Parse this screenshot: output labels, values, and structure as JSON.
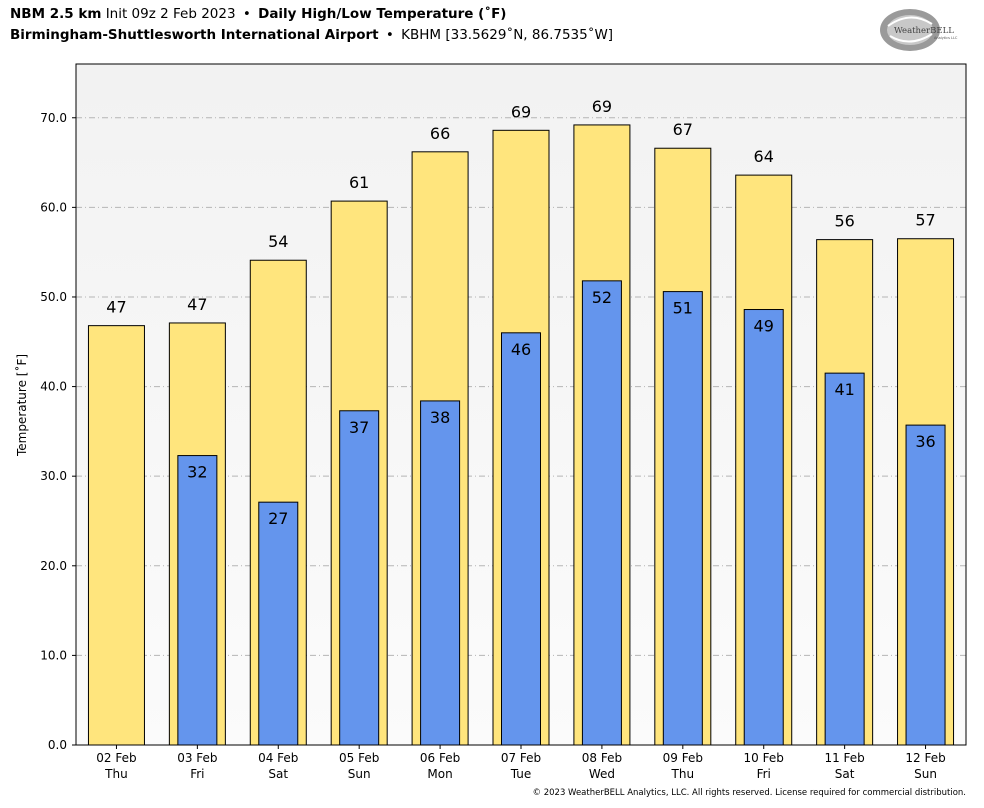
{
  "header": {
    "model": "NBM 2.5 km",
    "init": "Init 09z 2 Feb 2023",
    "bullet": "•",
    "product": "Daily High/Low Temperature (˚F)",
    "station_name": "Birmingham-Shuttlesworth International Airport",
    "station_info": "KBHM [33.5629˚N, 86.7535˚W]"
  },
  "logo": {
    "text": "WeatherBELL",
    "sub": "Analytics LLC"
  },
  "footer": "© 2023 WeatherBELL Analytics, LLC. All rights reserved. License required for commercial distribution.",
  "chart_data": {
    "type": "bar",
    "ylabel": "Temperature [˚F]",
    "ylim": [
      0,
      76
    ],
    "yticks": [
      "0.0",
      "10.0",
      "20.0",
      "30.0",
      "40.0",
      "50.0",
      "60.0",
      "70.0"
    ],
    "grid": true,
    "categories": [
      {
        "date": "02 Feb",
        "day": "Thu"
      },
      {
        "date": "03 Feb",
        "day": "Fri"
      },
      {
        "date": "04 Feb",
        "day": "Sat"
      },
      {
        "date": "05 Feb",
        "day": "Sun"
      },
      {
        "date": "06 Feb",
        "day": "Mon"
      },
      {
        "date": "07 Feb",
        "day": "Tue"
      },
      {
        "date": "08 Feb",
        "day": "Wed"
      },
      {
        "date": "09 Feb",
        "day": "Thu"
      },
      {
        "date": "10 Feb",
        "day": "Fri"
      },
      {
        "date": "11 Feb",
        "day": "Sat"
      },
      {
        "date": "12 Feb",
        "day": "Sun"
      }
    ],
    "series": [
      {
        "values": [
          46.8,
          47.1,
          54.1,
          60.7,
          66.2,
          68.6,
          69.2,
          66.6,
          63.6,
          56.4,
          56.5
        ],
        "labels": [
          "47",
          "47",
          "54",
          "61",
          "66",
          "69",
          "69",
          "67",
          "64",
          "56",
          "57"
        ],
        "color": "#FFE57D"
      },
      {
        "values": [
          null,
          32.3,
          27.1,
          37.3,
          38.4,
          46.0,
          51.8,
          50.6,
          48.6,
          41.5,
          35.7
        ],
        "labels": [
          "",
          "32",
          "27",
          "37",
          "38",
          "46",
          "52",
          "51",
          "49",
          "41",
          "36"
        ],
        "color": "#6495ED"
      }
    ]
  }
}
